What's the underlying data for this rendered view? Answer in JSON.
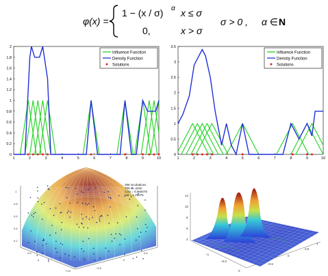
{
  "formula": {
    "lhs": "φ(x) =",
    "case1_expr": "1 − (x / σ)",
    "case1_exp": "α",
    "case1_cond": "x ≤ σ",
    "case2_expr": "0,",
    "case2_cond": "x > σ",
    "cond_sigma": "σ > 0 ,",
    "cond_alpha_1": "α ∈",
    "cond_alpha_2": "N"
  },
  "legend": {
    "influence": "Influence Function",
    "density": "Density Function",
    "solutions": "Solutions"
  },
  "colors": {
    "influence": "#1ed21e",
    "density": "#1f2fd6",
    "solutions": "#e02020"
  },
  "surface_text": {
    "lines": [
      "396 incubations",
      "785 ex. plots",
      "C2D = 6.960078",
      "ntd = 1.29075"
    ]
  },
  "chart_data": [
    {
      "type": "line",
      "id": "left",
      "xlim": [
        1,
        10
      ],
      "ylim": [
        0,
        2
      ],
      "xticks": [
        1,
        2,
        3,
        4,
        5,
        6,
        7,
        8,
        9,
        10
      ],
      "yticks": [
        0,
        0.2,
        0.4,
        0.6,
        0.8,
        1,
        1.2,
        1.4,
        1.6,
        1.8,
        2
      ],
      "ytick_labels": [
        "0",
        "0.2",
        "0.4",
        "0.6",
        "0.8",
        "1",
        "1.2",
        "1.4",
        "1.6",
        "1.8",
        "2"
      ],
      "solutions_x": [
        1.9,
        2.2,
        2.5,
        2.8,
        3.1,
        5.8,
        7.9,
        9.0,
        9.4,
        9.7,
        10
      ],
      "influence_sigma": 0.5,
      "density": {
        "x": [
          1,
          1.7,
          2,
          2.1,
          2.3,
          2.45,
          2.6,
          2.8,
          3.1,
          3.3,
          3.5,
          5.5,
          5.8,
          6.2,
          7.6,
          7.9,
          8.3,
          8.6,
          9.0,
          9.3,
          9.45,
          9.6,
          9.8,
          10
        ],
        "y": [
          0,
          0,
          1.8,
          2.0,
          1.8,
          1.8,
          1.8,
          2.0,
          1.4,
          0,
          0,
          0,
          1.0,
          0,
          0,
          1.0,
          0,
          0,
          1.0,
          0.8,
          0.8,
          0.8,
          0.8,
          1.0
        ]
      },
      "legend_position": "top-right"
    },
    {
      "type": "line",
      "id": "right",
      "xlim": [
        1,
        10
      ],
      "ylim": [
        0,
        3.5
      ],
      "xticks": [
        1,
        2,
        3,
        4,
        5,
        6,
        7,
        8,
        9,
        10
      ],
      "yticks": [
        0,
        0.5,
        1,
        1.5,
        2,
        2.5,
        3,
        3.5
      ],
      "ytick_labels": [
        "0",
        "0.5",
        "1",
        "1.5",
        "2",
        "2.5",
        "3",
        "3.5"
      ],
      "solutions_x": [
        1.9,
        2.2,
        2.5,
        2.8,
        3.1,
        5.0,
        8.1,
        9.0,
        9.3
      ],
      "influence_sigma": 1.0,
      "density": {
        "x": [
          1,
          1.3,
          1.7,
          2.0,
          2.5,
          2.7,
          3.0,
          3.3,
          3.7,
          4.0,
          4.3,
          4.6,
          5.0,
          5.4,
          6.0,
          7.5,
          8.0,
          8.5,
          9.0,
          9.3,
          9.5,
          10
        ],
        "y": [
          1.0,
          1.3,
          1.9,
          2.9,
          3.4,
          3.2,
          2.5,
          1.4,
          0.3,
          1.0,
          0.3,
          0,
          1.0,
          0,
          0,
          0,
          1.0,
          0.5,
          1.0,
          0.6,
          1.4,
          1.4
        ]
      },
      "legend_position": "top-right"
    }
  ]
}
